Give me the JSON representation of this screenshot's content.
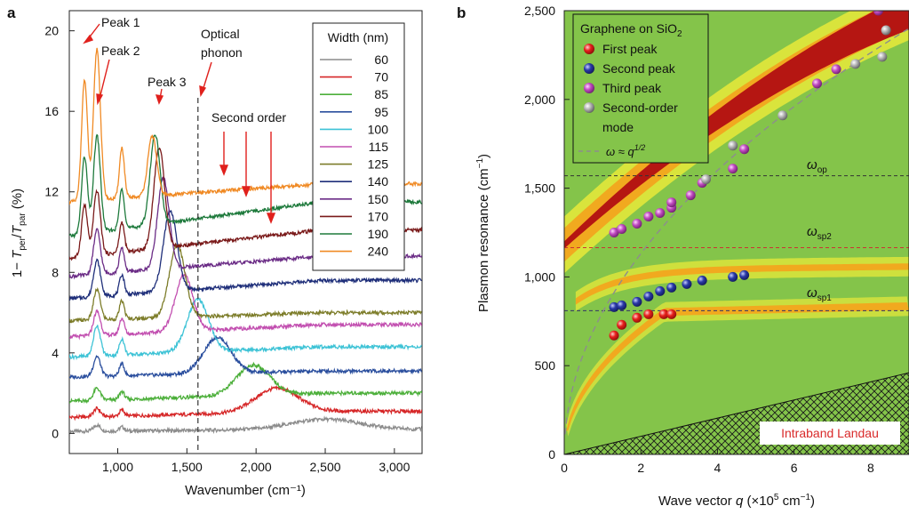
{
  "panel_a": {
    "panel_label": "a",
    "xlabel": "Wavenumber (cm⁻¹)",
    "ylabel_parts": [
      "1− ",
      "T",
      "per",
      "/",
      "T",
      "par",
      " (%)"
    ],
    "legend_title": "Width (nm)",
    "annotations": {
      "peak1": "Peak 1",
      "peak2": "Peak 2",
      "peak3": "Peak 3",
      "optical1": "Optical",
      "optical2": "phonon",
      "second_order": "Second order"
    },
    "colors": {
      "60": "#8c8c8c",
      "70": "#d62728",
      "85": "#4caf3a",
      "95": "#2b4f9e",
      "100": "#3ec3d6",
      "115": "#c24fb0",
      "125": "#7d7d2a",
      "140": "#1f2f7a",
      "150": "#6b2c86",
      "170": "#7a1a1a",
      "190": "#1e7a3c",
      "240": "#f08a24"
    }
  },
  "panel_b": {
    "panel_label": "b",
    "xlabel_parts": [
      "Wave vector ",
      "q",
      " (×10",
      "5",
      " cm",
      "−1",
      ")"
    ],
    "ylabel_parts": [
      "Plasmon resonance (cm",
      "−1",
      ")"
    ],
    "legend_title": "Graphene on SiO",
    "legend_title_sub": "2",
    "legend_items": [
      "First peak",
      "Second peak",
      "Third peak",
      "Second-order",
      "mode"
    ],
    "fit_label": "ω ≈ q",
    "fit_exp": "1/2",
    "omega_op": "ω",
    "omega_op_sub": "op",
    "omega_sp2": "ω",
    "omega_sp2_sub": "sp2",
    "omega_sp1": "ω",
    "omega_sp1_sub": "sp1",
    "landau_label": "Intraband Landau",
    "colors": {
      "first": "#e8201c",
      "second": "#2a3aa8",
      "third": "#c14bc1",
      "second_order": "#b5b5b5",
      "background": "#84c44a",
      "band": "#c11c10",
      "op_line": "#333333",
      "sp2_line": "#cc3333",
      "sp1_line": "#333366"
    }
  },
  "chart_data": [
    {
      "type": "line",
      "title": "",
      "xlabel": "Wavenumber (cm⁻¹)",
      "ylabel": "1− Tper/Tpar (%)",
      "xlim": [
        650,
        3200
      ],
      "ylim": [
        -1,
        21
      ],
      "xticks": [
        1000,
        1500,
        2000,
        2500,
        3000
      ],
      "xtick_labels": [
        "1,000",
        "1,500",
        "2,000",
        "2,500",
        "3,000"
      ],
      "yticks": [
        0,
        4,
        8,
        12,
        16,
        20
      ],
      "ytick_labels": [
        "0",
        "4",
        "8",
        "12",
        "16",
        "20"
      ],
      "legend_position": "top-right",
      "optical_phonon_x": 1580,
      "series": [
        {
          "name": "60",
          "baseline": 0.1,
          "tail": 0.2,
          "peak_x": 2500,
          "peak_h": 0.5,
          "peak_w": 350,
          "phonon": [
            0.3,
            0.2
          ]
        },
        {
          "name": "70",
          "baseline": 0.8,
          "tail": 1.1,
          "peak_x": 2150,
          "peak_h": 1.2,
          "peak_w": 220,
          "phonon": [
            0.4,
            0.3
          ]
        },
        {
          "name": "85",
          "baseline": 1.6,
          "tail": 2.0,
          "peak_x": 1980,
          "peak_h": 1.5,
          "peak_w": 170,
          "phonon": [
            0.6,
            0.4
          ]
        },
        {
          "name": "95",
          "baseline": 2.8,
          "tail": 3.1,
          "peak_x": 1720,
          "peak_h": 1.8,
          "peak_w": 140,
          "phonon": [
            1.0,
            0.6
          ]
        },
        {
          "name": "100",
          "baseline": 3.8,
          "tail": 4.3,
          "peak_x": 1580,
          "peak_h": 2.6,
          "peak_w": 110,
          "phonon": [
            1.5,
            0.8
          ]
        },
        {
          "name": "115",
          "baseline": 4.8,
          "tail": 5.4,
          "peak_x": 1480,
          "peak_h": 2.8,
          "peak_w": 90,
          "phonon": [
            1.2,
            0.8
          ]
        },
        {
          "name": "125",
          "baseline": 5.6,
          "tail": 6.0,
          "peak_x": 1430,
          "peak_h": 3.6,
          "peak_w": 80,
          "phonon": [
            1.5,
            0.9
          ]
        },
        {
          "name": "140",
          "baseline": 6.7,
          "tail": 7.6,
          "peak_x": 1380,
          "peak_h": 4.0,
          "peak_w": 70,
          "phonon": [
            1.8,
            1.0
          ]
        },
        {
          "name": "150",
          "baseline": 7.8,
          "tail": 8.8,
          "peak_x": 1330,
          "peak_h": 4.5,
          "peak_w": 60,
          "phonon": [
            2.2,
            1.2
          ]
        },
        {
          "name": "170",
          "baseline": 8.7,
          "tail": 10.1,
          "peak_x": 1300,
          "peak_h": 5.0,
          "peak_w": 55,
          "phonon": [
            3.2,
            1.5
          ]
        },
        {
          "name": "190",
          "baseline": 9.8,
          "tail": 11.5,
          "peak_x": 1270,
          "peak_h": 4.5,
          "peak_w": 50,
          "phonon": [
            4.8,
            2.0
          ]
        },
        {
          "name": "240",
          "baseline": 11.5,
          "tail": 12.4,
          "peak_x": 1250,
          "peak_h": 3.0,
          "peak_w": 45,
          "phonon": [
            7.5,
            2.5
          ]
        }
      ]
    },
    {
      "type": "scatter",
      "title": "",
      "xlabel": "Wave vector q (×10⁵ cm⁻¹)",
      "ylabel": "Plasmon resonance (cm⁻¹)",
      "xlim": [
        0,
        9
      ],
      "ylim": [
        0,
        2500
      ],
      "xticks": [
        0,
        2,
        4,
        6,
        8
      ],
      "xtick_labels": [
        "0",
        "2",
        "4",
        "6",
        "8"
      ],
      "yticks": [
        0,
        500,
        1000,
        1500,
        2000,
        2500
      ],
      "ytick_labels": [
        "0",
        "500",
        "1,000",
        "1,500",
        "2,000",
        "2,500"
      ],
      "legend_position": "top-left",
      "hlines": {
        "omega_op": 1570,
        "omega_sp2": 1165,
        "omega_sp1": 810
      },
      "fit": {
        "name": "ω ≈ q^1/2",
        "coefficient": 800
      },
      "landau_boundary": [
        [
          0,
          0
        ],
        [
          9,
          460
        ]
      ],
      "series": [
        {
          "name": "First peak",
          "points": [
            [
              1.3,
              670
            ],
            [
              1.5,
              730
            ],
            [
              1.9,
              770
            ],
            [
              2.2,
              790
            ],
            [
              2.6,
              790
            ],
            [
              2.8,
              790
            ]
          ]
        },
        {
          "name": "Second peak",
          "points": [
            [
              1.3,
              830
            ],
            [
              1.5,
              840
            ],
            [
              1.9,
              860
            ],
            [
              2.2,
              890
            ],
            [
              2.5,
              920
            ],
            [
              2.8,
              940
            ],
            [
              3.2,
              960
            ],
            [
              3.6,
              980
            ],
            [
              4.4,
              1000
            ],
            [
              4.7,
              1010
            ]
          ]
        },
        {
          "name": "Third peak",
          "points": [
            [
              1.3,
              1250
            ],
            [
              1.5,
              1270
            ],
            [
              1.9,
              1300
            ],
            [
              2.2,
              1340
            ],
            [
              2.5,
              1360
            ],
            [
              2.8,
              1390
            ],
            [
              2.8,
              1420
            ],
            [
              3.3,
              1460
            ],
            [
              3.6,
              1530
            ],
            [
              4.4,
              1610
            ],
            [
              4.7,
              1720
            ],
            [
              6.6,
              2090
            ],
            [
              7.1,
              2170
            ],
            [
              8.2,
              2500
            ]
          ]
        },
        {
          "name": "Second-order mode",
          "points": [
            [
              3.7,
              1550
            ],
            [
              4.4,
              1740
            ],
            [
              5.7,
              1910
            ],
            [
              7.6,
              2200
            ],
            [
              8.3,
              2240
            ],
            [
              8.4,
              2390
            ]
          ]
        }
      ]
    }
  ]
}
